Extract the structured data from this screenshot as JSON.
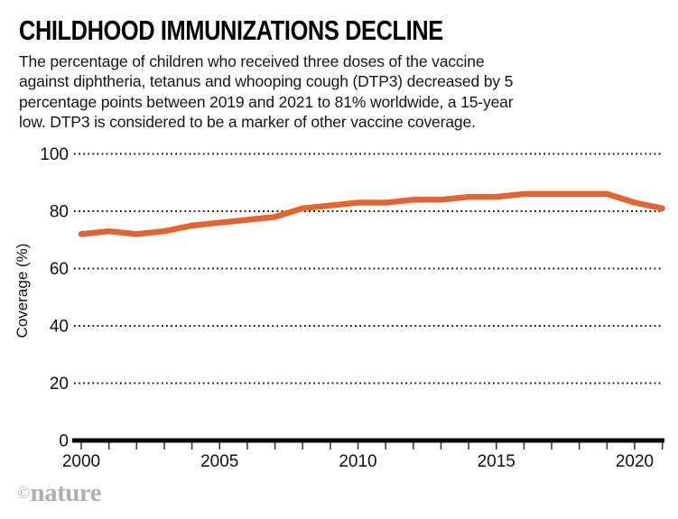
{
  "header": {
    "title": "CHILDHOOD IMMUNIZATIONS DECLINE",
    "subtitle_lines": [
      "The percentage of children who received three doses of the vaccine",
      "against diphtheria, tetanus and whooping cough (DTP3) decreased by 5",
      "percentage points between 2019 and 2021 to 81% worldwide, a 15-year",
      "low. DTP3 is considered to be a marker of other vaccine coverage."
    ]
  },
  "footer": {
    "copyright_symbol": "©",
    "brand": "nature"
  },
  "colors": {
    "line": "#e5632e",
    "axis": "#000000",
    "grid": "#1a1a1a",
    "tick_label": "#111111",
    "watermark": "#b1b1b1"
  },
  "chart_data": {
    "type": "line",
    "title": "CHILDHOOD IMMUNIZATIONS DECLINE",
    "xlabel": "",
    "ylabel": "Coverage (%)",
    "x": [
      2000,
      2001,
      2002,
      2003,
      2004,
      2005,
      2006,
      2007,
      2008,
      2009,
      2010,
      2011,
      2012,
      2013,
      2014,
      2015,
      2016,
      2017,
      2018,
      2019,
      2020,
      2021
    ],
    "series": [
      {
        "name": "DTP3 coverage (%)",
        "color": "#e5632e",
        "values": [
          72,
          73,
          72,
          73,
          75,
          76,
          77,
          78,
          81,
          82,
          83,
          83,
          84,
          84,
          85,
          85,
          86,
          86,
          86,
          86,
          83,
          81
        ]
      }
    ],
    "xticks": [
      2000,
      2005,
      2010,
      2015,
      2020
    ],
    "yticks": [
      0,
      20,
      40,
      60,
      80,
      100
    ],
    "xlim": [
      2000,
      2021
    ],
    "ylim": [
      0,
      100
    ],
    "grid": "horizontal-dotted",
    "legend_position": "none"
  }
}
